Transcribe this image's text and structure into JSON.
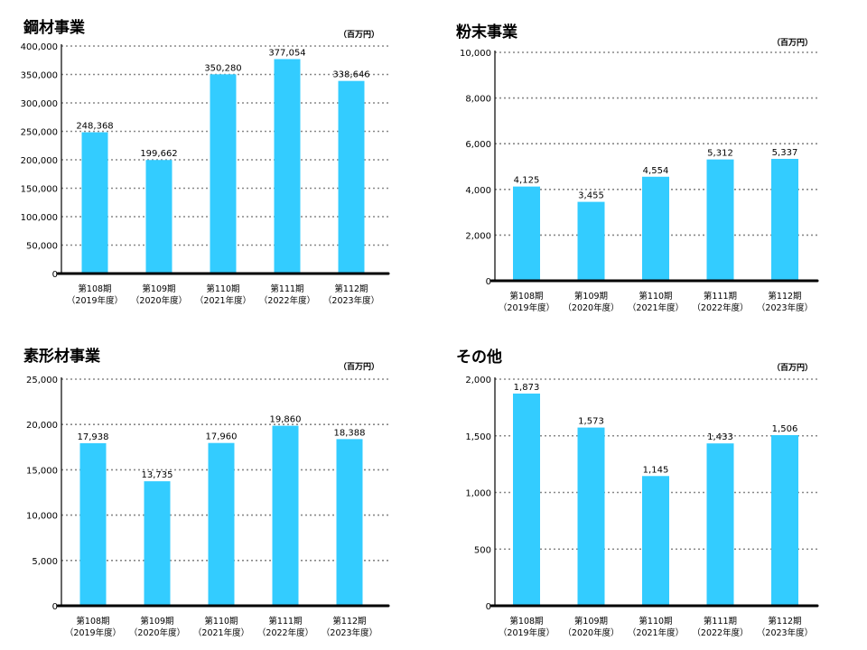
{
  "unit_label": "（百万円）",
  "categories": [
    [
      "第108期",
      "（2019年度）"
    ],
    [
      "第109期",
      "（2020年度）"
    ],
    [
      "第110期",
      "（2021年度）"
    ],
    [
      "第111期",
      "（2022年度）"
    ],
    [
      "第112期",
      "（2023年度）"
    ]
  ],
  "colors": {
    "bar": "#33ccff",
    "grid": "#888888",
    "axis": "#000000"
  },
  "chart_data": [
    {
      "type": "bar",
      "title": "鋼材事業",
      "categories": [
        "第108期（2019年度）",
        "第109期（2020年度）",
        "第110期（2021年度）",
        "第111期（2022年度）",
        "第112期（2023年度）"
      ],
      "values": [
        248368,
        199662,
        350280,
        377054,
        338646
      ],
      "value_labels": [
        "248,368",
        "199,662",
        "350,280",
        "377,054",
        "338,646"
      ],
      "ylim": [
        0,
        400000
      ],
      "yticks": [
        0,
        50000,
        100000,
        150000,
        200000,
        250000,
        300000,
        350000,
        400000
      ],
      "ytick_labels": [
        "0",
        "50,000",
        "100,000",
        "150,000",
        "200,000",
        "250,000",
        "300,000",
        "350,000",
        "400,000"
      ],
      "grid": true
    },
    {
      "type": "bar",
      "title": "粉末事業",
      "categories": [
        "第108期（2019年度）",
        "第109期（2020年度）",
        "第110期（2021年度）",
        "第111期（2022年度）",
        "第112期（2023年度）"
      ],
      "values": [
        4125,
        3455,
        4554,
        5312,
        5337
      ],
      "value_labels": [
        "4,125",
        "3,455",
        "4,554",
        "5,312",
        "5,337"
      ],
      "ylim": [
        0,
        10000
      ],
      "yticks": [
        0,
        2000,
        4000,
        6000,
        8000,
        10000
      ],
      "ytick_labels": [
        "0",
        "2,000",
        "4,000",
        "6,000",
        "8,000",
        "10,000"
      ],
      "grid": true
    },
    {
      "type": "bar",
      "title": "素形材事業",
      "categories": [
        "第108期（2019年度）",
        "第109期（2020年度）",
        "第110期（2021年度）",
        "第111期（2022年度）",
        "第112期（2023年度）"
      ],
      "values": [
        17938,
        13735,
        17960,
        19860,
        18388
      ],
      "value_labels": [
        "17,938",
        "13,735",
        "17,960",
        "19,860",
        "18,388"
      ],
      "ylim": [
        0,
        25000
      ],
      "yticks": [
        0,
        5000,
        10000,
        15000,
        20000,
        25000
      ],
      "ytick_labels": [
        "0",
        "5,000",
        "10,000",
        "15,000",
        "20,000",
        "25,000"
      ],
      "grid": true
    },
    {
      "type": "bar",
      "title": "その他",
      "categories": [
        "第108期（2019年度）",
        "第109期（2020年度）",
        "第110期（2021年度）",
        "第111期（2022年度）",
        "第112期（2023年度）"
      ],
      "values": [
        1873,
        1573,
        1145,
        1433,
        1506
      ],
      "value_labels": [
        "1,873",
        "1,573",
        "1,145",
        "1,433",
        "1,506"
      ],
      "ylim": [
        0,
        2000
      ],
      "yticks": [
        0,
        500,
        1000,
        1500,
        2000
      ],
      "ytick_labels": [
        "0",
        "500",
        "1,000",
        "1,500",
        "2,000"
      ],
      "grid": true
    }
  ]
}
